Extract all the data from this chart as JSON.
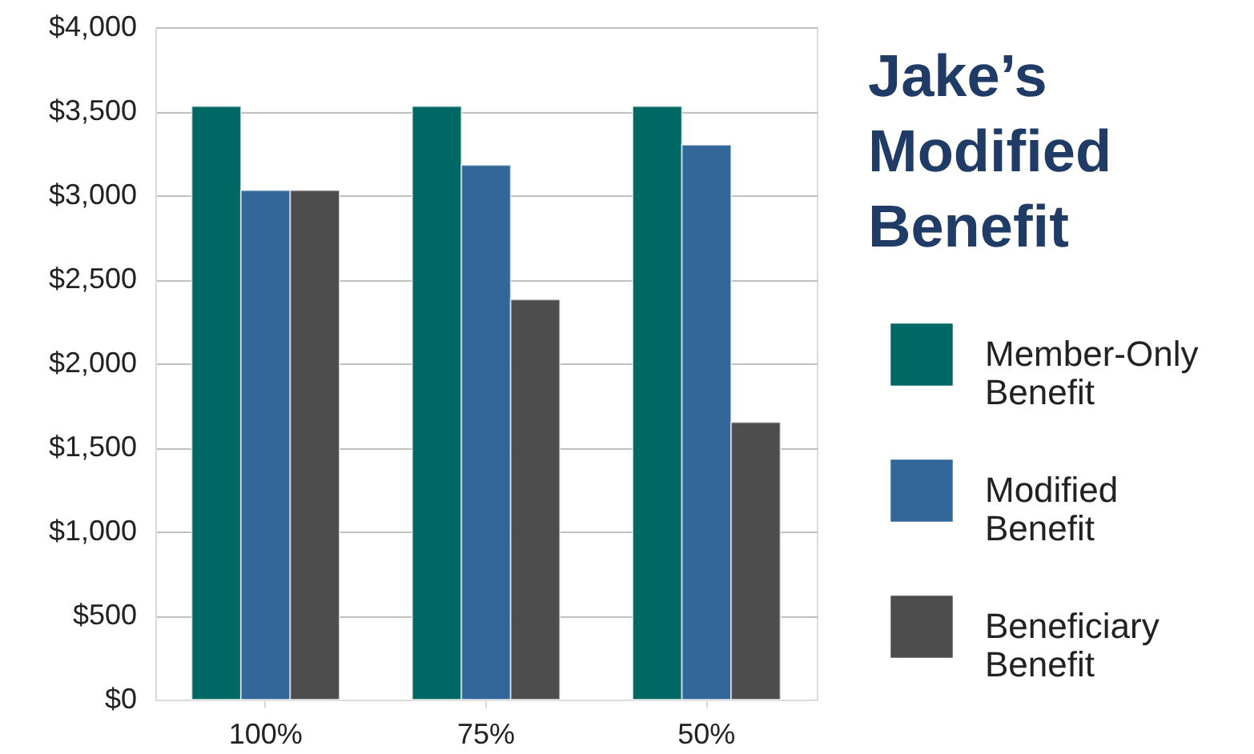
{
  "chart_data": {
    "type": "bar",
    "title": "Jake’s Modified Benefit",
    "categories": [
      "100%",
      "75%",
      "50%"
    ],
    "series": [
      {
        "name": "Member-Only Benefit",
        "color": "#006864",
        "values": [
          3530,
          3530,
          3530
        ]
      },
      {
        "name": "Modified Benefit",
        "color": "#336699",
        "values": [
          3030,
          3180,
          3300
        ]
      },
      {
        "name": "Beneficiary Benefit",
        "color": "#4d4d4d",
        "values": [
          3030,
          2380,
          1650
        ]
      }
    ],
    "ylim": [
      0,
      4000
    ],
    "yticks": [
      {
        "value": 0,
        "label": "$0"
      },
      {
        "value": 500,
        "label": "$500"
      },
      {
        "value": 1000,
        "label": "$1,000"
      },
      {
        "value": 1500,
        "label": "$1,500"
      },
      {
        "value": 2000,
        "label": "$2,000"
      },
      {
        "value": 2500,
        "label": "$2,500"
      },
      {
        "value": 3000,
        "label": "$3,000"
      },
      {
        "value": 3500,
        "label": "$3,500"
      },
      {
        "value": 4000,
        "label": "$4,000"
      }
    ],
    "grid": "y",
    "legend": "right"
  }
}
